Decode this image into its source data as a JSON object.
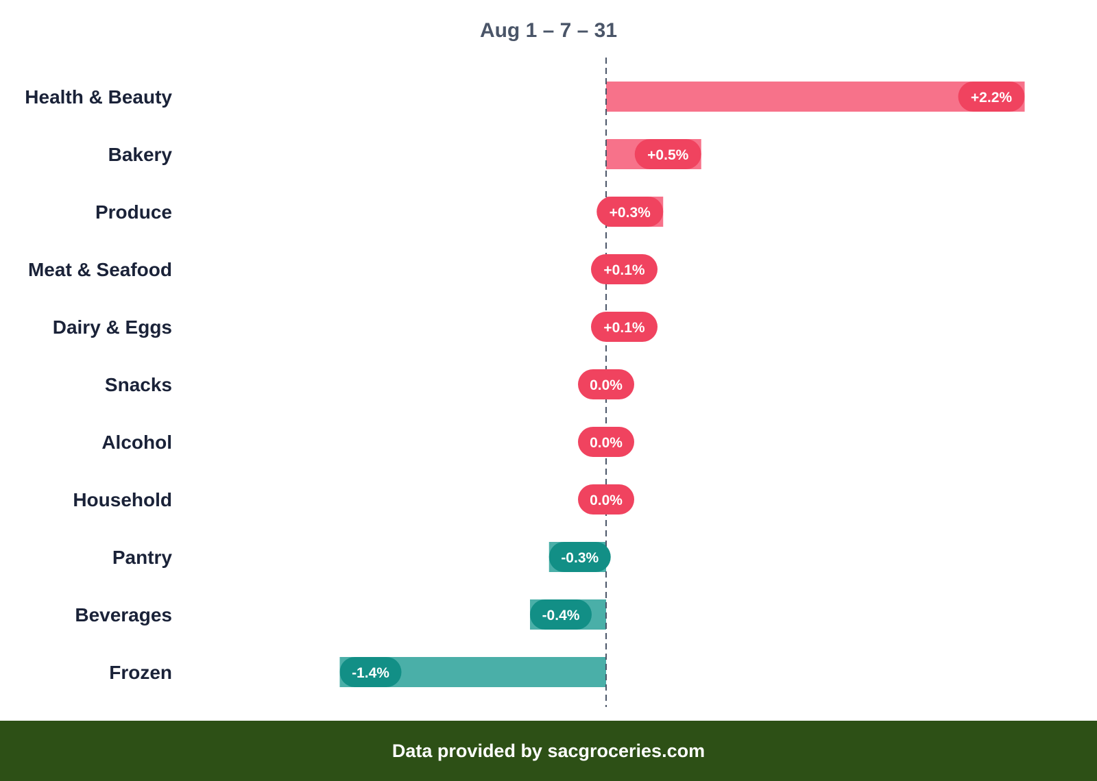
{
  "chart_data": {
    "type": "bar",
    "orientation": "horizontal",
    "title": "Aug 1 – 7 – 31",
    "categories": [
      "Health & Beauty",
      "Bakery",
      "Produce",
      "Meat & Seafood",
      "Dairy & Eggs",
      "Snacks",
      "Alcohol",
      "Household",
      "Pantry",
      "Beverages",
      "Frozen"
    ],
    "values": [
      2.2,
      0.5,
      0.3,
      0.1,
      0.1,
      0.0,
      0.0,
      0.0,
      -0.3,
      -0.4,
      -1.4
    ],
    "value_labels": [
      "+2.2%",
      "+0.5%",
      "+0.3%",
      "+0.1%",
      "+0.1%",
      "0.0%",
      "0.0%",
      "0.0%",
      "-0.3%",
      "-0.4%",
      "-1.4%"
    ],
    "unit": "%",
    "xlim": [
      -1.4,
      2.2
    ],
    "zero_line": "dashed",
    "grid": false,
    "colors": {
      "positive_bar": "#f7728a",
      "positive_pill": "#f0435f",
      "negative_bar": "#4aafa8",
      "negative_pill": "#128f86"
    }
  },
  "footer": {
    "text": "Data provided by sacgroceries.com",
    "background": "#2d5016"
  }
}
